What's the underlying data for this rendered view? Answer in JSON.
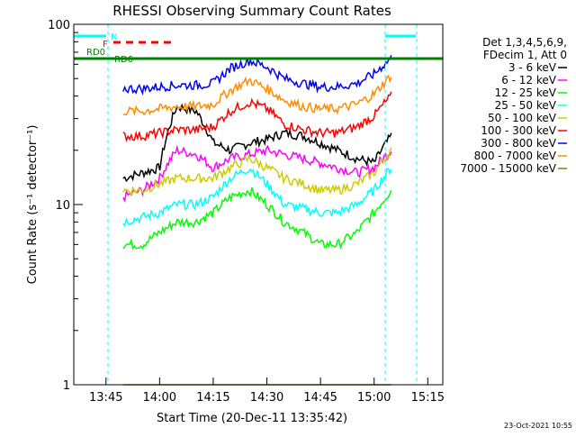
{
  "chart_data": {
    "type": "line",
    "title": "RHESSI Observing Summary Count Rates",
    "xlabel": "Start Time (20-Dec-11 13:35:42)",
    "ylabel": "Count Rate (s⁻¹ detector⁻¹)",
    "y_scale": "log",
    "ylim": [
      1,
      100
    ],
    "y_ticks": [
      "1",
      "10",
      "100"
    ],
    "x_ticks": [
      "13:45",
      "14:00",
      "14:15",
      "14:30",
      "14:45",
      "15:00",
      "15:15"
    ],
    "footer_date": "23-Oct-2021 10:55",
    "legend": {
      "header": [
        "Det 1,3,4,5,6,9,",
        "FDecim 1, Att 0"
      ],
      "placement": "right"
    },
    "markers": {
      "n_label": "N",
      "f_label": "F",
      "rd0_label": "RD0",
      "rd6_label": "RD6"
    },
    "series": [
      {
        "name": "3 - 6 keV",
        "color": "#000000",
        "values": [
          14,
          15,
          16,
          35,
          33,
          22,
          20,
          22,
          23,
          25,
          24,
          22,
          20,
          18,
          17,
          24
        ]
      },
      {
        "name": "6 - 12 keV",
        "color": "#ff00ff",
        "values": [
          11,
          12,
          14,
          20,
          19,
          16,
          18,
          19,
          20,
          19,
          18,
          17,
          16,
          15,
          16,
          20
        ]
      },
      {
        "name": "12 - 25 keV",
        "color": "#00ff00",
        "values": [
          6,
          6,
          7,
          8,
          8,
          9,
          11,
          12,
          10,
          8,
          7,
          6,
          6,
          7,
          9,
          12
        ]
      },
      {
        "name": "25 - 50 keV",
        "color": "#00ffff",
        "values": [
          8,
          8.5,
          9,
          10,
          10,
          11,
          14,
          16,
          13,
          10,
          9.5,
          9,
          9,
          10,
          12,
          16
        ]
      },
      {
        "name": "50 - 100 keV",
        "color": "#cccc00",
        "values": [
          12,
          12,
          13,
          14,
          14,
          14,
          16,
          18,
          16,
          14,
          13,
          12,
          12,
          13,
          15,
          20
        ]
      },
      {
        "name": "100 - 300 keV",
        "color": "#ff0000",
        "values": [
          24,
          24,
          25,
          26,
          26,
          27,
          33,
          37,
          34,
          28,
          26,
          25,
          25,
          27,
          31,
          40
        ]
      },
      {
        "name": "300 - 800 keV",
        "color": "#0000ff",
        "values": [
          44,
          44,
          45,
          46,
          46,
          47,
          57,
          63,
          58,
          50,
          47,
          45,
          45,
          47,
          53,
          65
        ]
      },
      {
        "name": "800 - 7000 keV",
        "color": "#ff8c00",
        "values": [
          33,
          33,
          34,
          35,
          35,
          36,
          43,
          49,
          44,
          38,
          35,
          34,
          34,
          36,
          41,
          52
        ]
      },
      {
        "name": "7000 - 15000 keV",
        "color": "#808000",
        "values": [
          1,
          1,
          1,
          1,
          1,
          1,
          1,
          1,
          1,
          1,
          1,
          1,
          1,
          1,
          1,
          1
        ]
      }
    ],
    "x": [
      13.83,
      13.92,
      14.0,
      14.08,
      14.17,
      14.25,
      14.33,
      14.42,
      14.5,
      14.58,
      14.67,
      14.75,
      14.83,
      14.92,
      15.0,
      15.08
    ]
  }
}
